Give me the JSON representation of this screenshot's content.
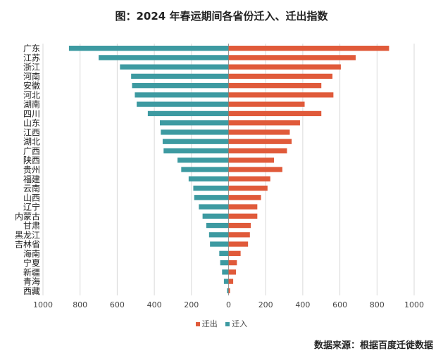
{
  "title": "图：2024 年春运期间各省份迁入、迁出指数",
  "source": "数据来源：根据百度迁徙数据",
  "colors": {
    "out": "#e05a3a",
    "in": "#3d9aa1",
    "grid": "#d9d9d9",
    "axis": "#999999"
  },
  "chart_data": {
    "type": "bar",
    "orientation": "horizontal-diverging",
    "categories": [
      "广东",
      "江苏",
      "浙江",
      "河南",
      "安徽",
      "河北",
      "湖南",
      "四川",
      "山东",
      "江西",
      "湖北",
      "广西",
      "陕西",
      "贵州",
      "福建",
      "云南",
      "山西",
      "辽宁",
      "内蒙古",
      "甘肃",
      "黑龙江",
      "吉林省",
      "海南",
      "宁夏",
      "新疆",
      "青海",
      "西藏"
    ],
    "series": [
      {
        "name": "迁出",
        "side": "right",
        "values": [
          865,
          685,
          605,
          560,
          500,
          565,
          410,
          500,
          385,
          330,
          340,
          315,
          245,
          290,
          225,
          210,
          175,
          155,
          155,
          120,
          115,
          105,
          65,
          45,
          40,
          25,
          8
        ]
      },
      {
        "name": "迁入",
        "side": "left",
        "values": [
          860,
          700,
          585,
          525,
          520,
          505,
          495,
          435,
          370,
          365,
          355,
          350,
          275,
          255,
          215,
          190,
          185,
          160,
          140,
          120,
          105,
          100,
          50,
          45,
          35,
          25,
          8
        ]
      }
    ],
    "xlim": [
      -1000,
      1000
    ],
    "xticks": [
      1000,
      800,
      600,
      400,
      200,
      0,
      200,
      400,
      600,
      800,
      1000
    ],
    "grid": true,
    "legend_position": "bottom-center"
  }
}
